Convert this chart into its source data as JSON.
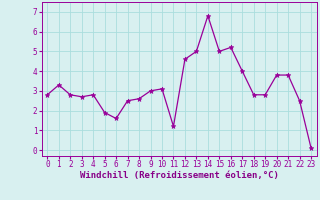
{
  "x": [
    0,
    1,
    2,
    3,
    4,
    5,
    6,
    7,
    8,
    9,
    10,
    11,
    12,
    13,
    14,
    15,
    16,
    17,
    18,
    19,
    20,
    21,
    22,
    23
  ],
  "y": [
    2.8,
    3.3,
    2.8,
    2.7,
    2.8,
    1.9,
    1.6,
    2.5,
    2.6,
    3.0,
    3.1,
    1.2,
    4.6,
    5.0,
    6.8,
    5.0,
    5.2,
    4.0,
    2.8,
    2.8,
    3.8,
    3.8,
    2.5,
    0.1
  ],
  "line_color": "#990099",
  "marker": "*",
  "marker_size": 3.5,
  "background_color": "#d8f0f0",
  "grid_color": "#aadddd",
  "xlabel": "Windchill (Refroidissement éolien,°C)",
  "xlabel_color": "#880088",
  "xlabel_fontsize": 6.5,
  "ylabel_ticks": [
    0,
    1,
    2,
    3,
    4,
    5,
    6,
    7
  ],
  "xlim": [
    -0.5,
    23.5
  ],
  "ylim": [
    -0.3,
    7.5
  ],
  "xticks": [
    0,
    1,
    2,
    3,
    4,
    5,
    6,
    7,
    8,
    9,
    10,
    11,
    12,
    13,
    14,
    15,
    16,
    17,
    18,
    19,
    20,
    21,
    22,
    23
  ],
  "tick_color": "#990099",
  "tick_fontsize": 5.5,
  "spine_color": "#990099",
  "linewidth": 0.9
}
